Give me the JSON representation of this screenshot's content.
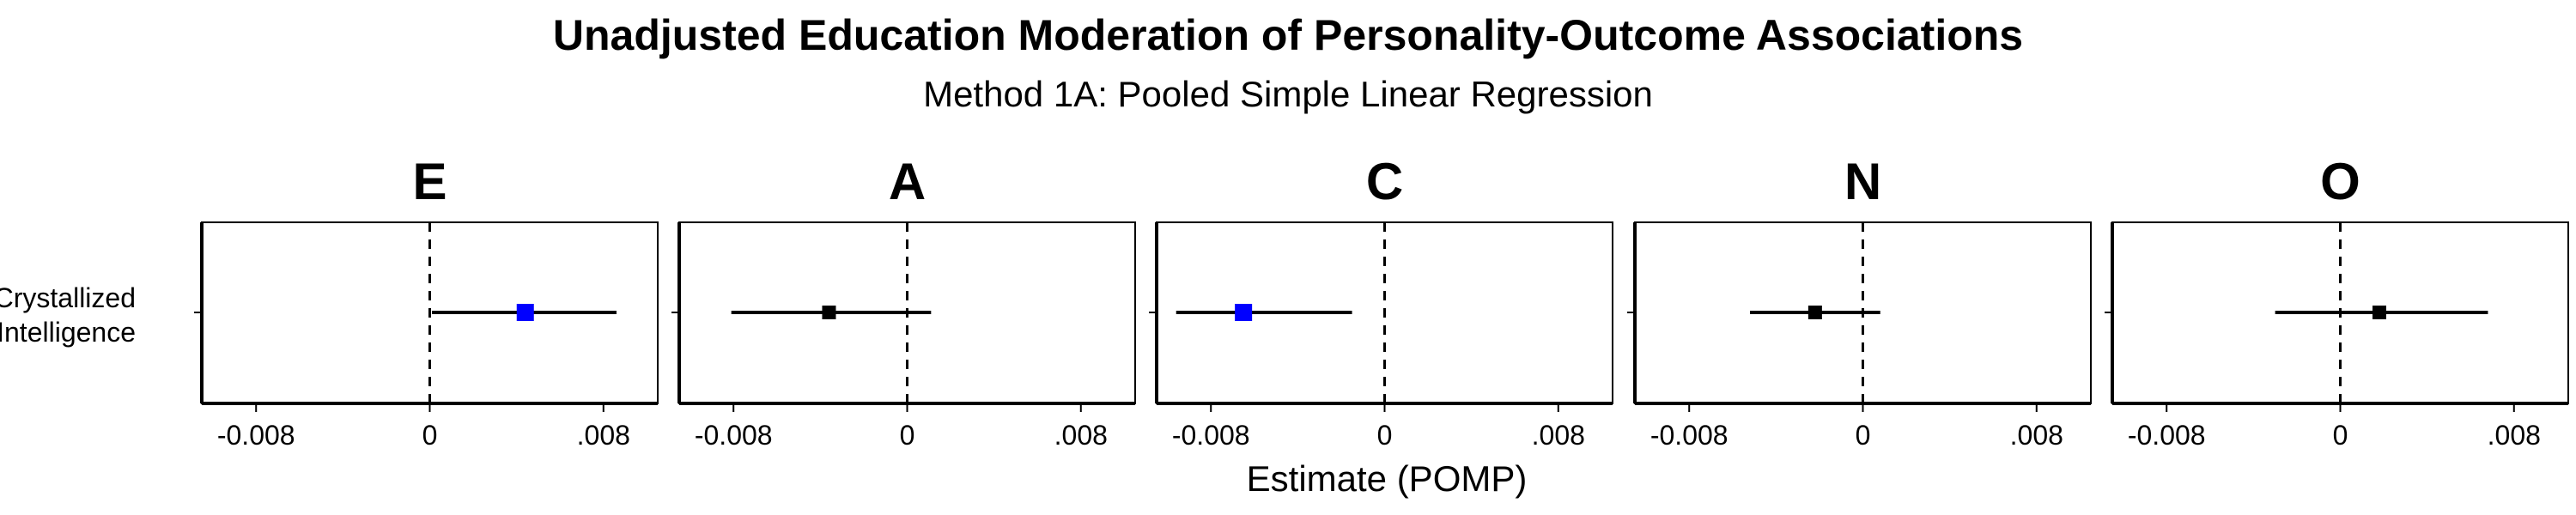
{
  "chart_data": {
    "type": "forest",
    "title": "Unadjusted Education Moderation of Personality-Outcome Associations",
    "subtitle": "Method 1A: Pooled Simple Linear Regression",
    "xlabel": "Estimate (POMP)",
    "ylabel": "",
    "y_category": "Crystallized\nIntelligence",
    "y_category_lines": [
      "Crystallized",
      "Intelligence"
    ],
    "xlim": [
      -0.0105,
      0.0105
    ],
    "xticks": [
      -0.008,
      0,
      0.008
    ],
    "xtick_labels": [
      "-0.008",
      "0",
      ".008"
    ],
    "reference_line": 0,
    "panels": [
      {
        "label": "E",
        "estimate": 0.0044,
        "ci_low": 0.0001,
        "ci_high": 0.0086,
        "color": "#0000ff"
      },
      {
        "label": "A",
        "estimate": -0.0036,
        "ci_low": -0.0081,
        "ci_high": 0.0011,
        "color": "#000000"
      },
      {
        "label": "C",
        "estimate": -0.0065,
        "ci_low": -0.0096,
        "ci_high": -0.0015,
        "color": "#0000ff"
      },
      {
        "label": "N",
        "estimate": -0.0022,
        "ci_low": -0.0052,
        "ci_high": 0.0008,
        "color": "#000000"
      },
      {
        "label": "O",
        "estimate": 0.0018,
        "ci_low": -0.003,
        "ci_high": 0.0068,
        "color": "#000000"
      }
    ]
  }
}
